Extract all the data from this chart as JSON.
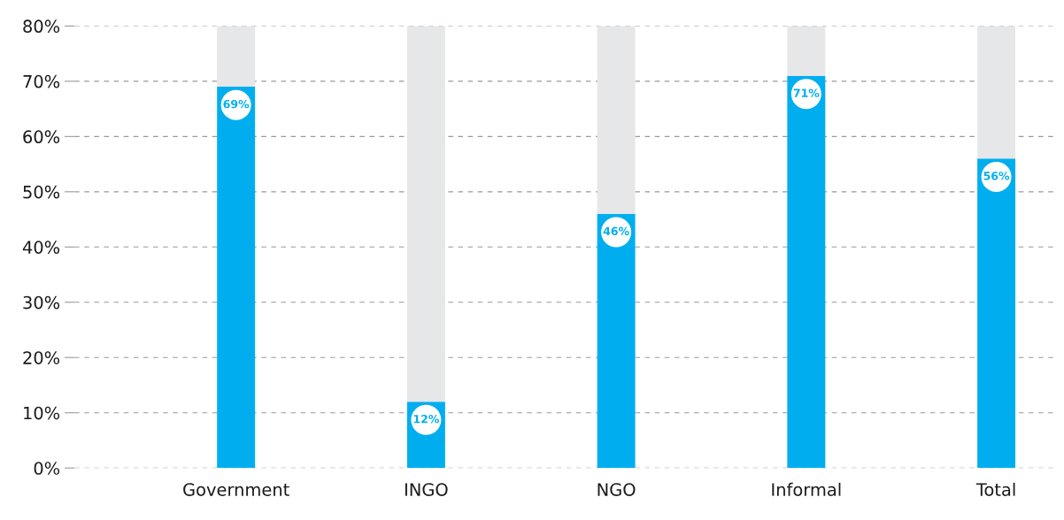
{
  "chart_data": {
    "type": "bar",
    "stacked": true,
    "categories": [
      "Government",
      "INGO",
      "NGO",
      "Informal",
      "Total"
    ],
    "series": [
      {
        "color": "#00aeef",
        "values": [
          69,
          12,
          46,
          71,
          56
        ],
        "value_labels": [
          "69%",
          "12%",
          "46%",
          "71%",
          "56%"
        ]
      },
      {
        "color": "#e6e7e8",
        "values": [
          11,
          68,
          34,
          9,
          24
        ]
      }
    ],
    "ylim": [
      0,
      80
    ],
    "yticks": [
      {
        "value": 0,
        "label": "0%"
      },
      {
        "value": 10,
        "label": "10%"
      },
      {
        "value": 20,
        "label": "20%"
      },
      {
        "value": 30,
        "label": "30%"
      },
      {
        "value": 40,
        "label": "40%"
      },
      {
        "value": 50,
        "label": "50%"
      },
      {
        "value": 60,
        "label": "60%"
      },
      {
        "value": 70,
        "label": "70%"
      },
      {
        "value": 80,
        "label": "80%"
      }
    ],
    "grid": "y",
    "line_style": "dashed"
  }
}
